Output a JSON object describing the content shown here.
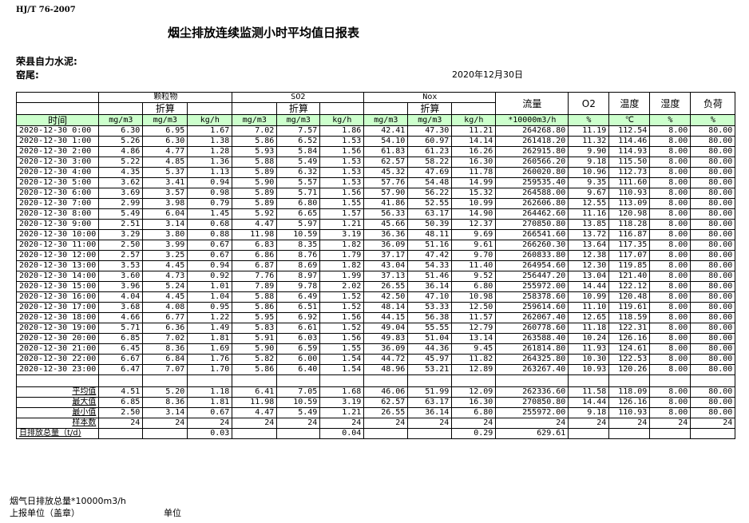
{
  "standard": "HJ/T  76-2007",
  "title": "烟尘排放连续监测小时平均值日报表",
  "company": "荣县自力水泥:",
  "kiln": "窑尾:",
  "date": "2020年12月30日",
  "header": {
    "groups": [
      "颗粒物",
      "SO2",
      "Nox"
    ],
    "converted": "折算",
    "flow": "流量",
    "o2": "O2",
    "temp": "温度",
    "humidity": "湿度",
    "load": "负荷",
    "units": [
      "时间",
      "mg/m3",
      "mg/m3",
      "kg/h",
      "mg/m3",
      "mg/m3",
      "kg/h",
      "mg/m3",
      "mg/m3",
      "kg/h",
      "*10000m3/h",
      "%",
      "℃",
      "%",
      "%"
    ]
  },
  "rows": [
    [
      "2020-12-30 0:00",
      "6.30",
      "6.95",
      "1.67",
      "7.02",
      "7.57",
      "1.86",
      "42.41",
      "47.30",
      "11.21",
      "264268.80",
      "11.19",
      "112.54",
      "8.00",
      "80.00"
    ],
    [
      "2020-12-30 1:00",
      "5.26",
      "6.30",
      "1.38",
      "5.86",
      "6.52",
      "1.53",
      "54.10",
      "60.97",
      "14.14",
      "261418.20",
      "11.32",
      "114.46",
      "8.00",
      "80.00"
    ],
    [
      "2020-12-30 2:00",
      "4.86",
      "4.77",
      "1.28",
      "5.93",
      "5.84",
      "1.56",
      "61.83",
      "61.23",
      "16.26",
      "262915.80",
      "9.90",
      "114.93",
      "8.00",
      "80.00"
    ],
    [
      "2020-12-30 3:00",
      "5.22",
      "4.85",
      "1.36",
      "5.88",
      "5.49",
      "1.53",
      "62.57",
      "58.22",
      "16.30",
      "260566.20",
      "9.18",
      "115.50",
      "8.00",
      "80.00"
    ],
    [
      "2020-12-30 4:00",
      "4.35",
      "5.37",
      "1.13",
      "5.89",
      "6.32",
      "1.53",
      "45.32",
      "47.69",
      "11.78",
      "260020.80",
      "10.96",
      "112.73",
      "8.00",
      "80.00"
    ],
    [
      "2020-12-30 5:00",
      "3.62",
      "3.41",
      "0.94",
      "5.90",
      "5.57",
      "1.53",
      "57.76",
      "54.48",
      "14.99",
      "259535.40",
      "9.35",
      "111.60",
      "8.00",
      "80.00"
    ],
    [
      "2020-12-30 6:00",
      "3.69",
      "3.57",
      "0.98",
      "5.89",
      "5.71",
      "1.56",
      "57.90",
      "56.22",
      "15.32",
      "264588.00",
      "9.67",
      "110.93",
      "8.00",
      "80.00"
    ],
    [
      "2020-12-30 7:00",
      "2.99",
      "3.98",
      "0.79",
      "5.89",
      "6.80",
      "1.55",
      "41.86",
      "52.55",
      "10.99",
      "262606.80",
      "12.55",
      "113.09",
      "8.00",
      "80.00"
    ],
    [
      "2020-12-30 8:00",
      "5.49",
      "6.04",
      "1.45",
      "5.92",
      "6.65",
      "1.57",
      "56.33",
      "63.17",
      "14.90",
      "264462.60",
      "11.16",
      "120.98",
      "8.00",
      "80.00"
    ],
    [
      "2020-12-30 9:00",
      "2.51",
      "3.14",
      "0.68",
      "4.47",
      "5.97",
      "1.21",
      "45.66",
      "50.39",
      "12.37",
      "270850.80",
      "13.85",
      "118.28",
      "8.00",
      "80.00"
    ],
    [
      "2020-12-30 10:00",
      "3.29",
      "3.80",
      "0.88",
      "11.98",
      "10.59",
      "3.19",
      "36.36",
      "48.11",
      "9.69",
      "266541.60",
      "13.72",
      "116.87",
      "8.00",
      "80.00"
    ],
    [
      "2020-12-30 11:00",
      "2.50",
      "3.99",
      "0.67",
      "6.83",
      "8.35",
      "1.82",
      "36.09",
      "51.16",
      "9.61",
      "266260.30",
      "13.64",
      "117.35",
      "8.00",
      "80.00"
    ],
    [
      "2020-12-30 12:00",
      "2.57",
      "3.25",
      "0.67",
      "6.86",
      "8.76",
      "1.79",
      "37.17",
      "47.42",
      "9.70",
      "260833.80",
      "12.38",
      "117.07",
      "8.00",
      "80.00"
    ],
    [
      "2020-12-30 13:00",
      "3.53",
      "4.45",
      "0.94",
      "6.87",
      "8.69",
      "1.82",
      "43.04",
      "54.33",
      "11.40",
      "264954.60",
      "12.30",
      "119.85",
      "8.00",
      "80.00"
    ],
    [
      "2020-12-30 14:00",
      "3.60",
      "4.73",
      "0.92",
      "7.76",
      "8.97",
      "1.99",
      "37.13",
      "51.46",
      "9.52",
      "256447.20",
      "13.04",
      "121.40",
      "8.00",
      "80.00"
    ],
    [
      "2020-12-30 15:00",
      "3.96",
      "5.24",
      "1.01",
      "7.89",
      "9.78",
      "2.02",
      "26.55",
      "36.14",
      "6.80",
      "255972.00",
      "14.44",
      "122.12",
      "8.00",
      "80.00"
    ],
    [
      "2020-12-30 16:00",
      "4.04",
      "4.45",
      "1.04",
      "5.88",
      "6.49",
      "1.52",
      "42.50",
      "47.10",
      "10.98",
      "258378.60",
      "10.99",
      "120.48",
      "8.00",
      "80.00"
    ],
    [
      "2020-12-30 17:00",
      "3.68",
      "4.08",
      "0.95",
      "5.86",
      "6.51",
      "1.52",
      "48.14",
      "53.33",
      "12.50",
      "259614.60",
      "11.10",
      "119.61",
      "8.00",
      "80.00"
    ],
    [
      "2020-12-30 18:00",
      "4.66",
      "6.77",
      "1.22",
      "5.95",
      "6.92",
      "1.56",
      "44.15",
      "56.38",
      "11.57",
      "262067.40",
      "12.65",
      "118.59",
      "8.00",
      "80.00"
    ],
    [
      "2020-12-30 19:00",
      "5.71",
      "6.36",
      "1.49",
      "5.83",
      "6.61",
      "1.52",
      "49.04",
      "55.55",
      "12.79",
      "260778.60",
      "11.18",
      "122.31",
      "8.00",
      "80.00"
    ],
    [
      "2020-12-30 20:00",
      "6.85",
      "7.02",
      "1.81",
      "5.91",
      "6.03",
      "1.56",
      "49.83",
      "51.04",
      "13.14",
      "263588.40",
      "10.24",
      "126.16",
      "8.00",
      "80.00"
    ],
    [
      "2020-12-30 21:00",
      "6.45",
      "8.36",
      "1.69",
      "5.90",
      "6.59",
      "1.55",
      "36.09",
      "44.36",
      "9.45",
      "261814.80",
      "11.93",
      "124.61",
      "8.00",
      "80.00"
    ],
    [
      "2020-12-30 22:00",
      "6.67",
      "6.84",
      "1.76",
      "5.82",
      "6.00",
      "1.54",
      "44.72",
      "45.97",
      "11.82",
      "264325.80",
      "10.30",
      "122.53",
      "8.00",
      "80.00"
    ],
    [
      "2020-12-30 23:00",
      "6.47",
      "7.07",
      "1.70",
      "5.86",
      "6.40",
      "1.54",
      "48.96",
      "53.21",
      "12.89",
      "263267.40",
      "10.93",
      "120.26",
      "8.00",
      "80.00"
    ]
  ],
  "stats": [
    [
      "平均值",
      "4.51",
      "5.20",
      "1.18",
      "6.41",
      "7.05",
      "1.68",
      "46.06",
      "51.99",
      "12.09",
      "262336.60",
      "11.58",
      "118.09",
      "8.00",
      "80.00"
    ],
    [
      "最大值",
      "6.85",
      "8.36",
      "1.81",
      "11.98",
      "10.59",
      "3.19",
      "62.57",
      "63.17",
      "16.30",
      "270850.80",
      "14.44",
      "126.16",
      "8.00",
      "80.00"
    ],
    [
      "最小值",
      "2.50",
      "3.14",
      "0.67",
      "4.47",
      "5.49",
      "1.21",
      "26.55",
      "36.14",
      "6.80",
      "255972.00",
      "9.18",
      "110.93",
      "8.00",
      "80.00"
    ],
    [
      "样本数",
      "24",
      "24",
      "24",
      "24",
      "24",
      "24",
      "24",
      "24",
      "24",
      "24",
      "24",
      "24",
      "24",
      "24"
    ]
  ],
  "daily_total": [
    "日排放总量（t/d)",
    "",
    "",
    "0.03",
    "",
    "",
    "0.04",
    "",
    "",
    "0.29",
    "629.61",
    "",
    "",
    "",
    ""
  ],
  "footer": {
    "flue_gas_total": "烟气日排放总量*10000m3/h",
    "reporting_unit": "上报单位（盖章）",
    "unit": "单位"
  }
}
